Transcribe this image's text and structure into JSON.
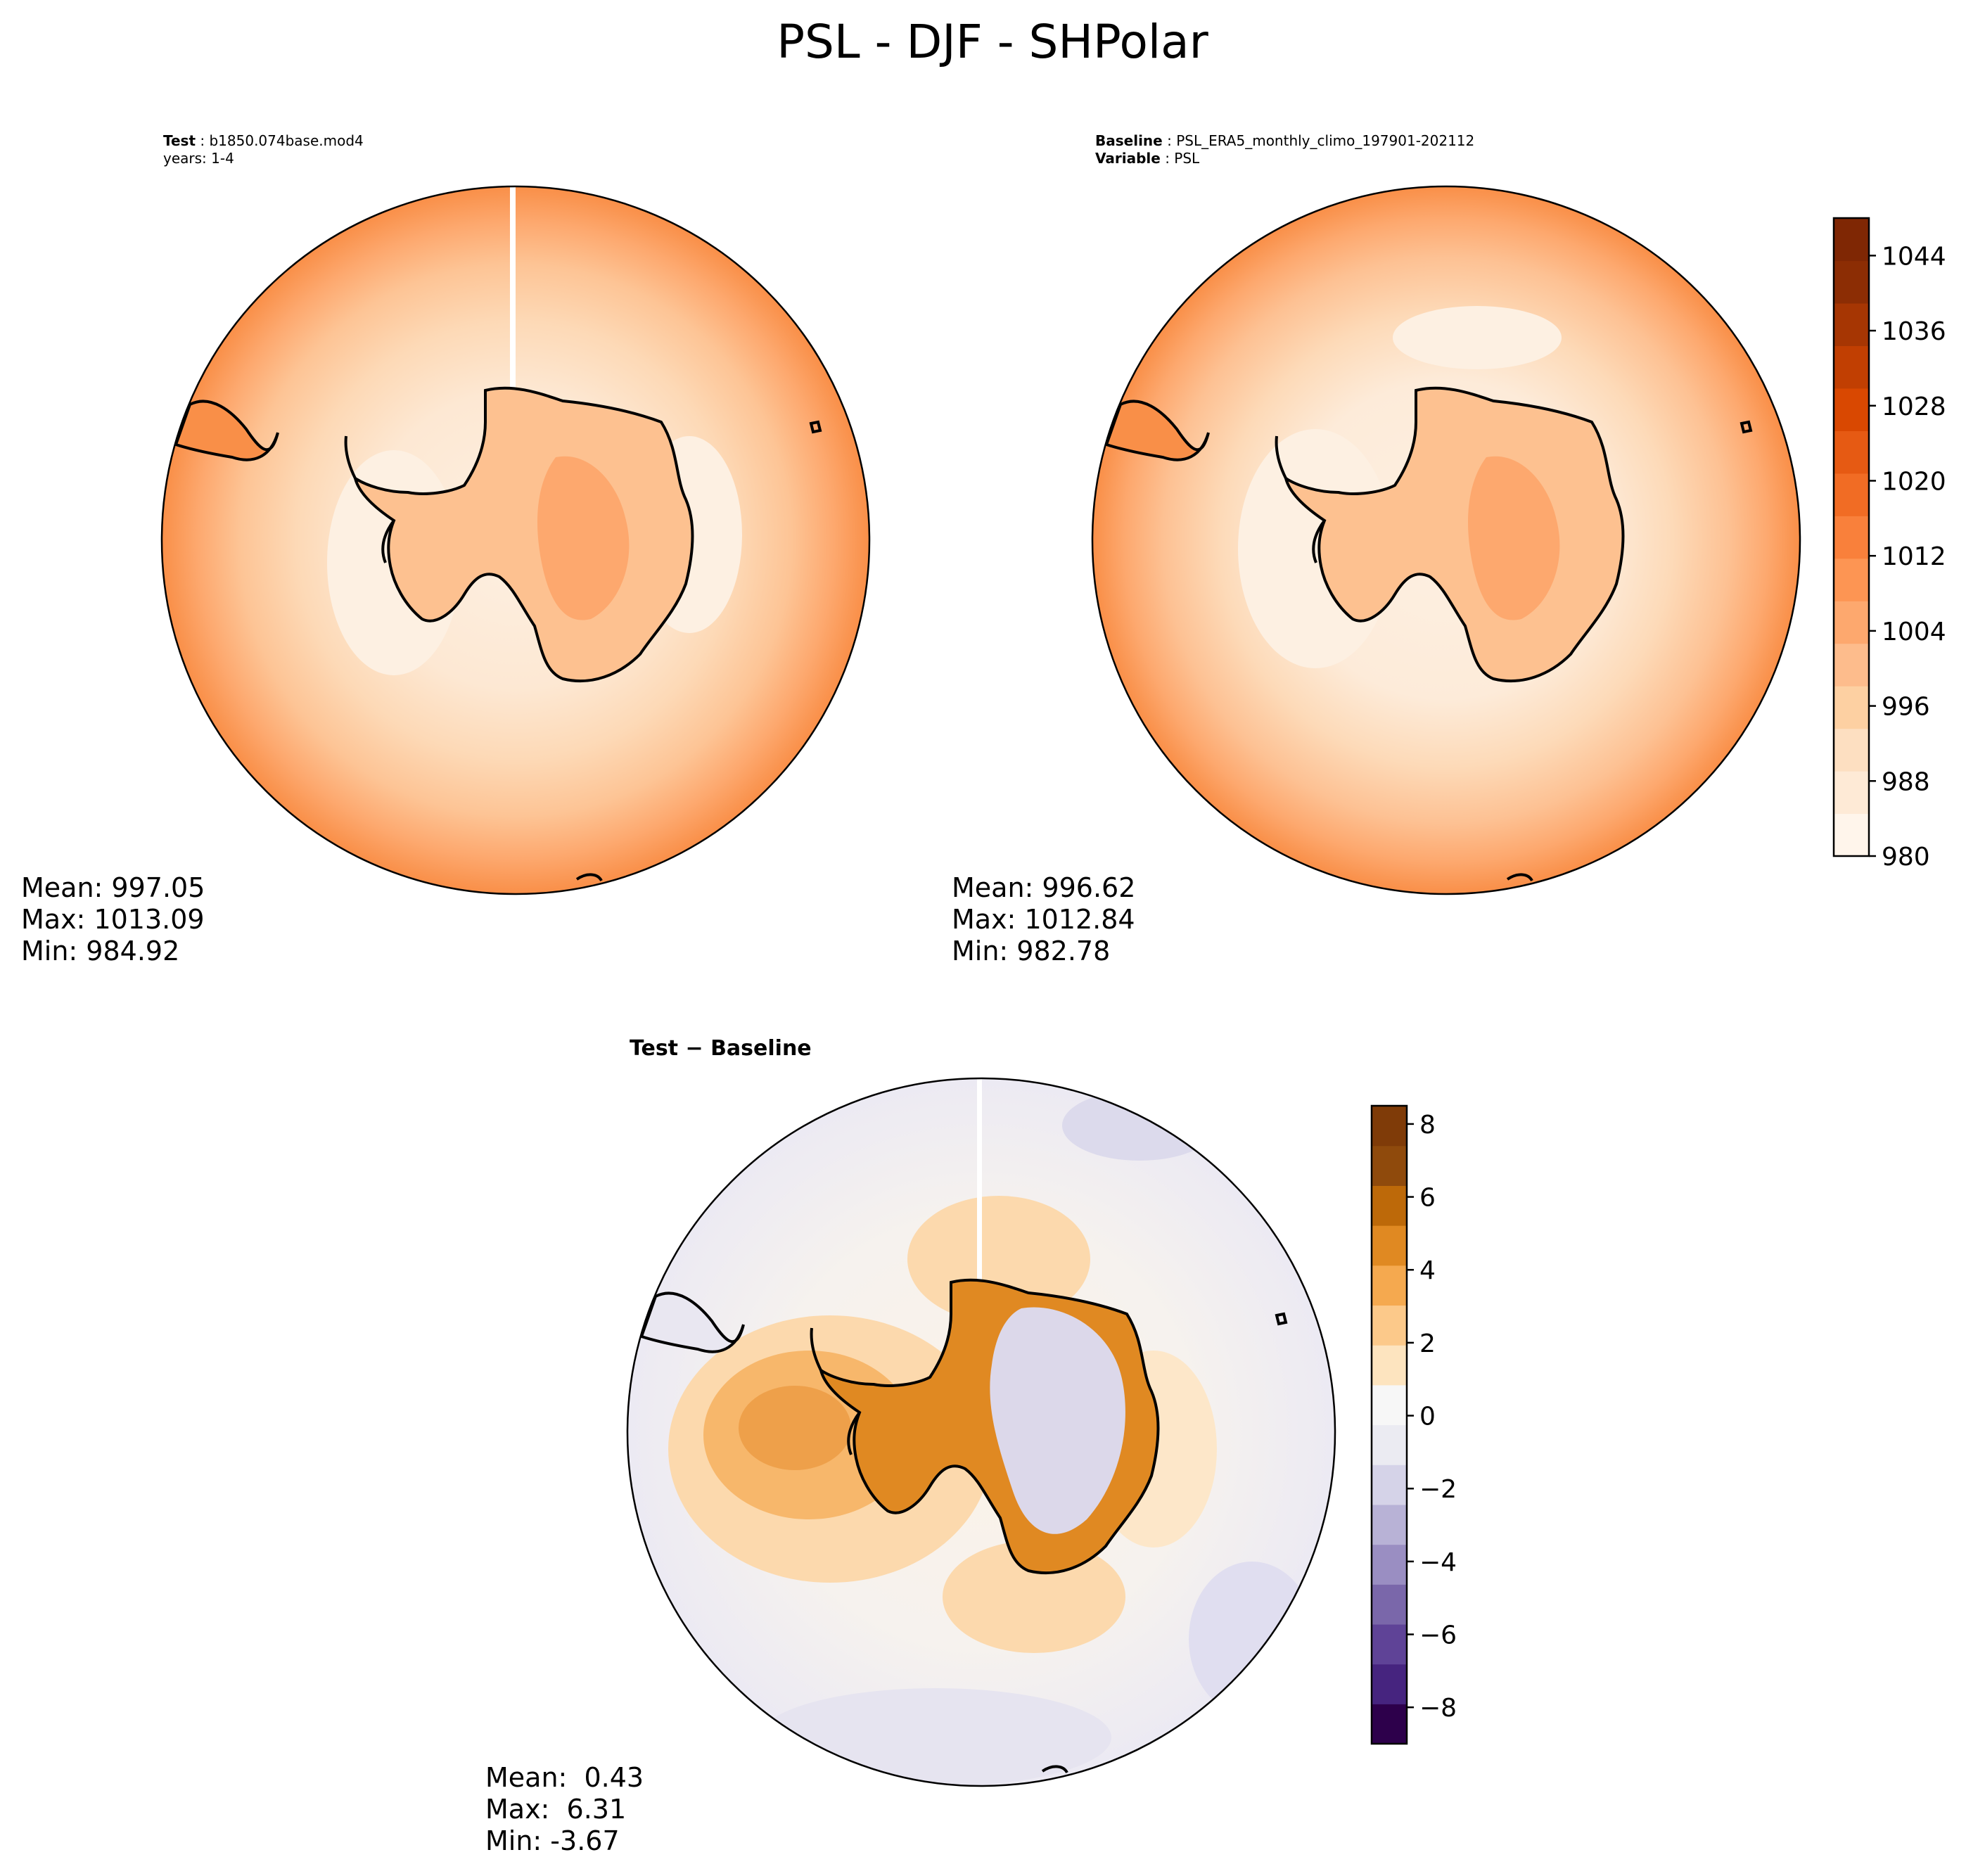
{
  "title": "PSL - DJF - SHPolar",
  "chart_data": [
    {
      "id": "test",
      "type": "contourf-map",
      "projection": "south-polar-stereographic",
      "header": {
        "line1_label": "Test",
        "line1_value": "b1850.074base.mod4",
        "line2": "years: 1-4"
      },
      "stats": {
        "mean": "Mean: 997.05",
        "max": "Max: 1013.09",
        "min": "Min: 984.92"
      },
      "values": {
        "mean": 997.05,
        "max": 1013.09,
        "min": 984.92
      },
      "colorbar": "abs"
    },
    {
      "id": "baseline",
      "type": "contourf-map",
      "projection": "south-polar-stereographic",
      "header": {
        "line1_label": "Baseline",
        "line1_value": "PSL_ERA5_monthly_climo_197901-202112",
        "line2_label": "Variable",
        "line2_value": "PSL"
      },
      "stats": {
        "mean": "Mean: 996.62",
        "max": "Max: 1012.84",
        "min": "Min: 982.78"
      },
      "values": {
        "mean": 996.62,
        "max": 1012.84,
        "min": 982.78
      },
      "colorbar": "abs"
    },
    {
      "id": "diff",
      "type": "contourf-map",
      "projection": "south-polar-stereographic",
      "header": {
        "title_a": "Test",
        "title_op": " − ",
        "title_b": "Baseline"
      },
      "stats": {
        "mean": "Mean:  0.43",
        "max": "Max:  6.31",
        "min": "Min: -3.67"
      },
      "values": {
        "mean": 0.43,
        "max": 6.31,
        "min": -3.67
      },
      "colorbar": "diff"
    }
  ],
  "colorbars": {
    "abs": {
      "range": [
        980,
        1048
      ],
      "tick_labels": [
        "980",
        "988",
        "996",
        "1004",
        "1012",
        "1020",
        "1028",
        "1036",
        "1044"
      ],
      "tick_values": [
        980,
        988,
        996,
        1004,
        1012,
        1020,
        1028,
        1036,
        1044
      ],
      "colors": [
        "#fff5eb",
        "#feead6",
        "#fddfc1",
        "#fdd0a2",
        "#fdbc8c",
        "#fda86e",
        "#fd9553",
        "#f9803b",
        "#f16c24",
        "#e65a13",
        "#d94801",
        "#c13f02",
        "#a63603",
        "#8c2d04",
        "#7f2704"
      ]
    },
    "diff": {
      "range": [
        -9,
        8.5
      ],
      "tick_labels": [
        "−8",
        "−6",
        "−4",
        "−2",
        "0",
        "2",
        "4",
        "6",
        "8"
      ],
      "tick_values": [
        -8,
        -6,
        -4,
        -2,
        0,
        2,
        4,
        6,
        8
      ],
      "colors": [
        "#2d004b",
        "#46247f",
        "#5f4397",
        "#7a67aa",
        "#9a8ec2",
        "#b8b2d6",
        "#d5d3e8",
        "#ebebf2",
        "#f7f7f7",
        "#fde4bf",
        "#fcc98a",
        "#f5a94f",
        "#e08922",
        "#bd6909",
        "#8f4a0c",
        "#7f3b08"
      ]
    }
  },
  "colors": {
    "ocean_far": "#f9823b",
    "ocean_mid": "#fdbc8c",
    "ocean_near": "#fde6cf",
    "land_high": "#fda86e",
    "diff_warm": "#f5a94f",
    "diff_cool": "#d8d6ea",
    "outline": "#000000"
  }
}
